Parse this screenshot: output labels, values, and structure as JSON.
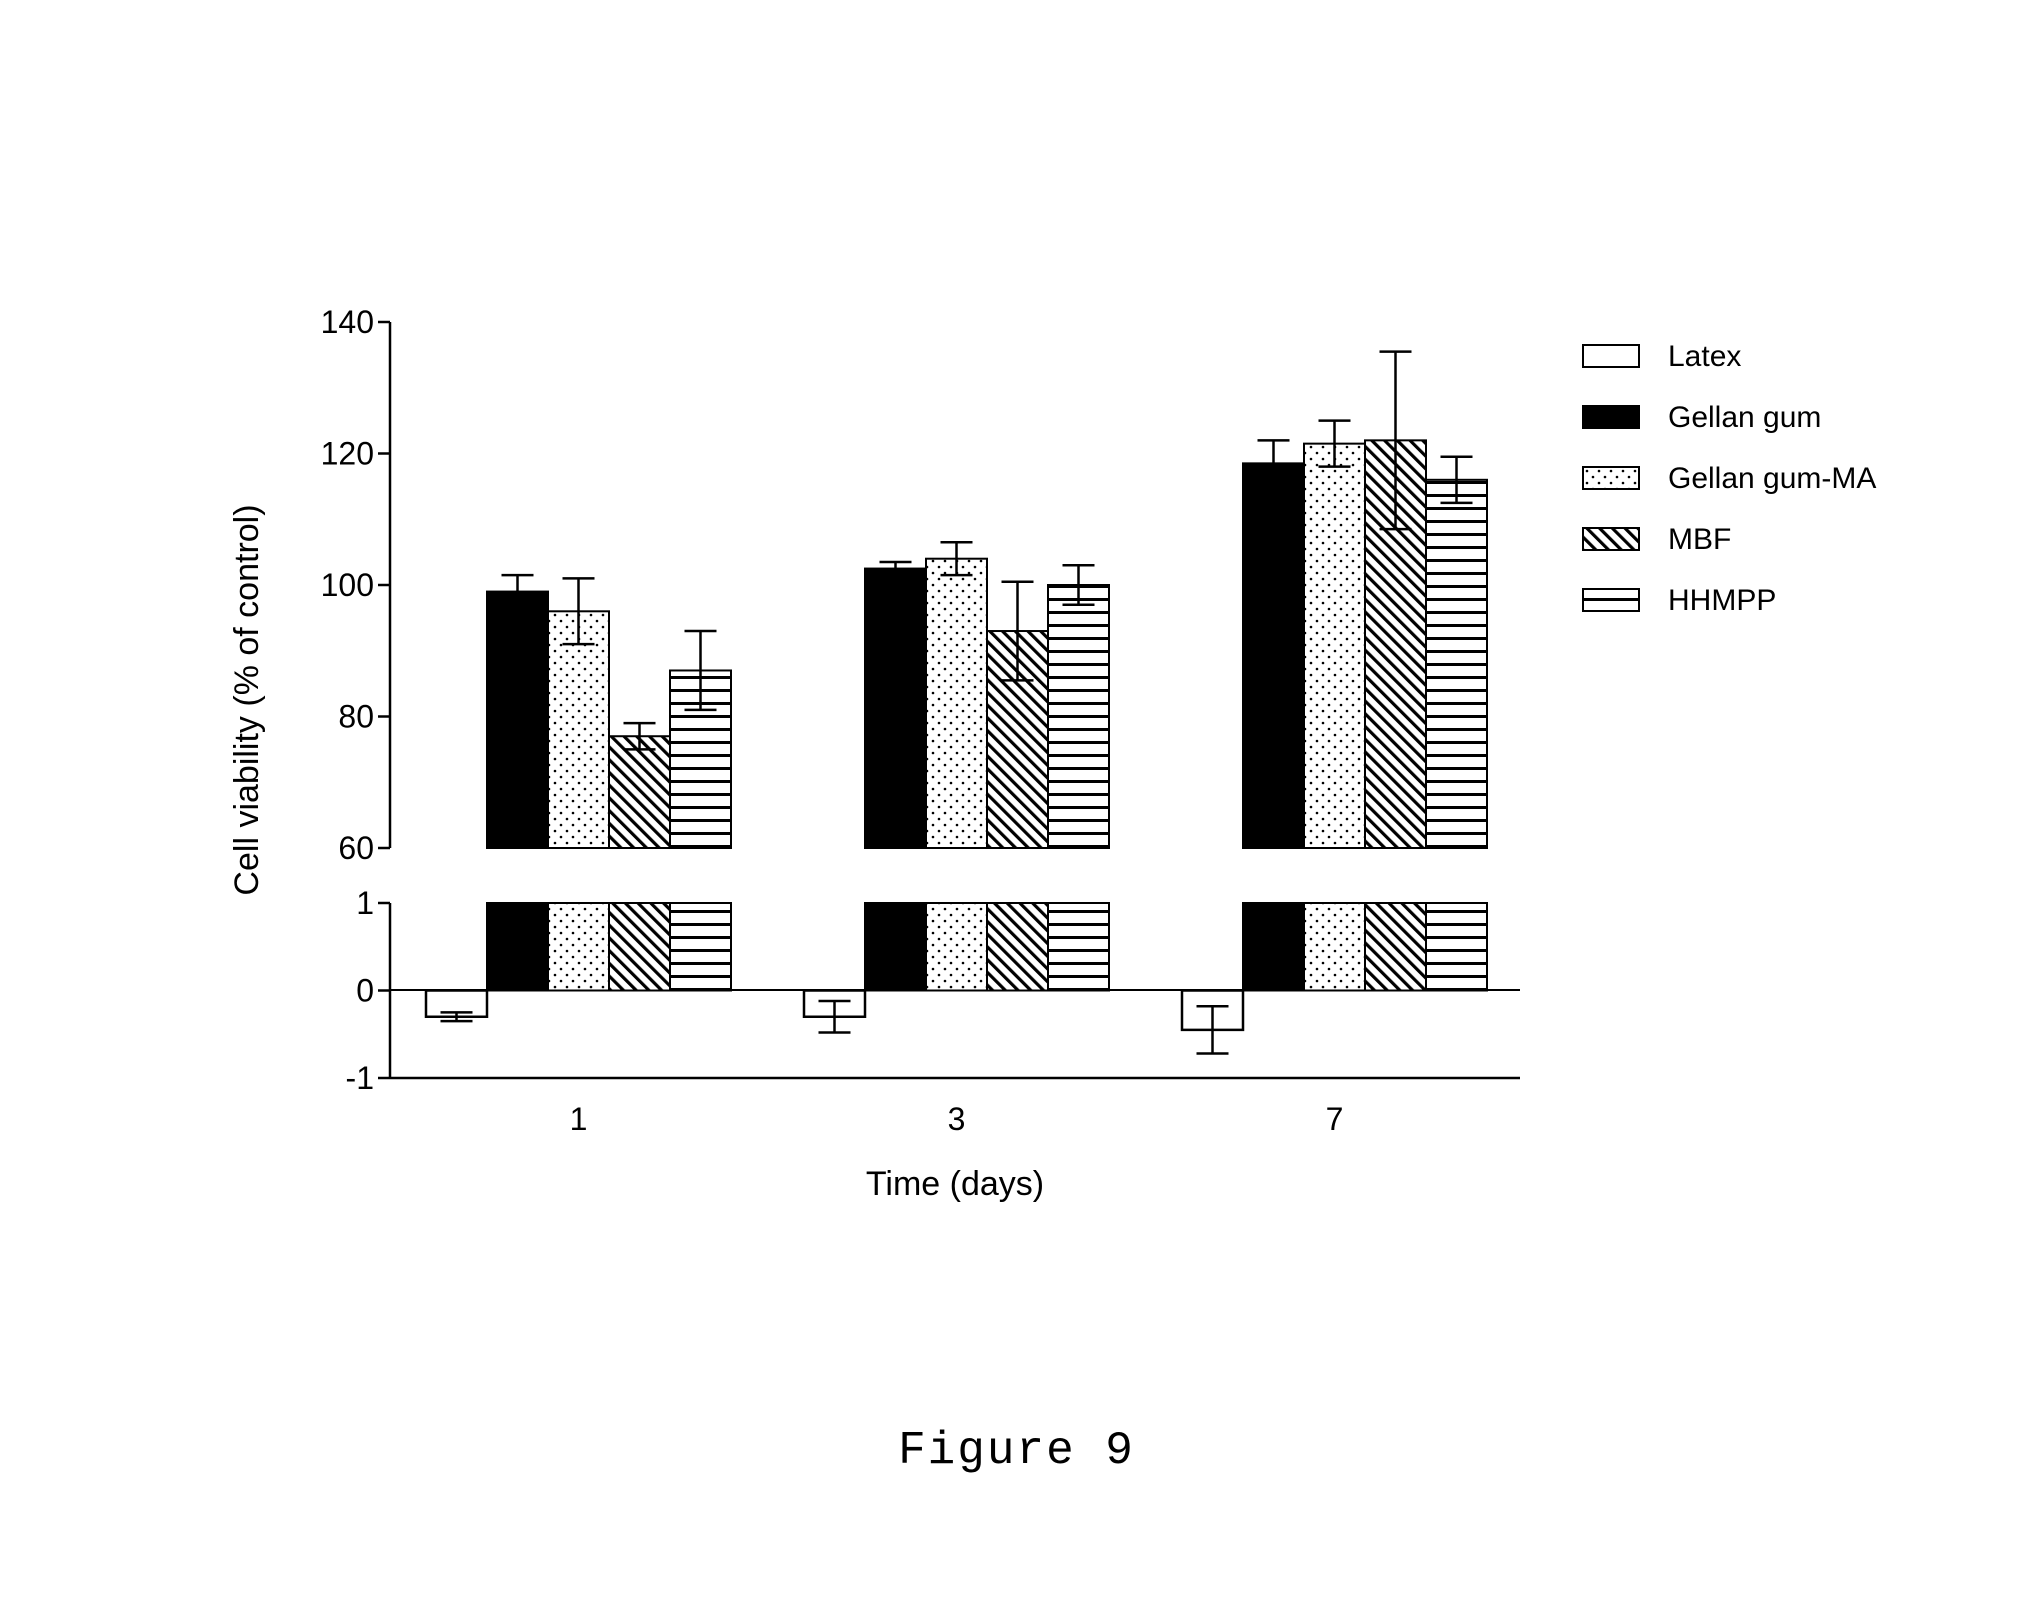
{
  "caption": "Figure 9",
  "chart_data": {
    "type": "bar",
    "xlabel": "Time (days)",
    "ylabel": "Cell viability (% of control)",
    "categories": [
      "1",
      "3",
      "7"
    ],
    "broken_y_axis": true,
    "upper_segment": {
      "ylim": [
        60,
        140
      ],
      "ticks": [
        "60",
        "80",
        "100",
        "120",
        "140"
      ]
    },
    "lower_segment": {
      "ylim": [
        -1,
        1
      ],
      "ticks": [
        "-1",
        "0",
        "1"
      ]
    },
    "legend_position": "right",
    "series": [
      {
        "name": "Latex",
        "pattern": "empty",
        "values": [
          -0.3,
          -0.3,
          -0.45
        ],
        "errors": [
          0.05,
          0.18,
          0.27
        ]
      },
      {
        "name": "Gellan gum",
        "pattern": "solid",
        "values": [
          99,
          102.5,
          118.5
        ],
        "errors": [
          2.5,
          1.0,
          3.5
        ]
      },
      {
        "name": "Gellan gum-MA",
        "pattern": "dots",
        "values": [
          96,
          104,
          121.5
        ],
        "errors": [
          5,
          2.5,
          3.5
        ]
      },
      {
        "name": "MBF",
        "pattern": "diagonal",
        "values": [
          77,
          93,
          122
        ],
        "errors": [
          2,
          7.5,
          13.5
        ]
      },
      {
        "name": "HHMPP",
        "pattern": "horizontal",
        "values": [
          87,
          100,
          116
        ],
        "errors": [
          6,
          3,
          3.5
        ]
      }
    ]
  }
}
